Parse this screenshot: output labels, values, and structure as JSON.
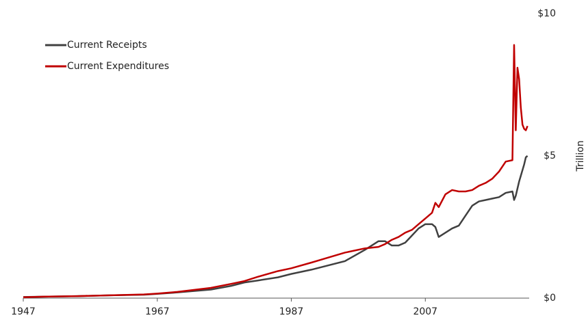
{
  "chart_data": {
    "type": "line",
    "y_label": "Trillion",
    "x": [
      1947,
      1950,
      1955,
      1960,
      1965,
      1967,
      1970,
      1975,
      1978,
      1980,
      1982,
      1985,
      1987,
      1990,
      1995,
      1998,
      2000,
      2001,
      2002,
      2003,
      2004,
      2005,
      2006,
      2007,
      2008,
      2008.5,
      2009,
      2010,
      2011,
      2012,
      2013,
      2014,
      2015,
      2016,
      2017,
      2018,
      2019,
      2020,
      2020.25,
      2020.5,
      2020.75,
      2021,
      2021.25,
      2021.5,
      2021.75,
      2022,
      2022.25
    ],
    "series": [
      {
        "name": "Current Receipts",
        "color": "#404040",
        "values": [
          0.04,
          0.05,
          0.07,
          0.1,
          0.12,
          0.15,
          0.2,
          0.3,
          0.43,
          0.55,
          0.62,
          0.73,
          0.85,
          1.0,
          1.3,
          1.7,
          2.0,
          2.0,
          1.85,
          1.85,
          1.95,
          2.2,
          2.45,
          2.6,
          2.6,
          2.5,
          2.15,
          2.3,
          2.45,
          2.55,
          2.9,
          3.25,
          3.4,
          3.45,
          3.5,
          3.55,
          3.7,
          3.75,
          3.45,
          3.6,
          3.85,
          4.1,
          4.3,
          4.5,
          4.7,
          4.95,
          5.0
        ]
      },
      {
        "name": "Current Expenditures",
        "color": "#c00000",
        "values": [
          0.03,
          0.05,
          0.07,
          0.1,
          0.13,
          0.16,
          0.22,
          0.36,
          0.5,
          0.6,
          0.75,
          0.95,
          1.05,
          1.25,
          1.6,
          1.75,
          1.8,
          1.9,
          2.05,
          2.15,
          2.3,
          2.4,
          2.6,
          2.8,
          3.0,
          3.35,
          3.2,
          3.65,
          3.8,
          3.75,
          3.75,
          3.8,
          3.95,
          4.05,
          4.2,
          4.45,
          4.8,
          4.85,
          8.9,
          5.9,
          8.1,
          7.7,
          6.7,
          6.1,
          5.95,
          5.9,
          6.05
        ]
      }
    ],
    "xlim": [
      1947,
      2022.5
    ],
    "xticks": [
      1947,
      1967,
      1987,
      2007
    ],
    "ylim": [
      0,
      10
    ],
    "yticks": [
      {
        "value": 0,
        "label": "$0"
      },
      {
        "value": 5,
        "label": "$5"
      },
      {
        "value": 10,
        "label": "$10"
      }
    ],
    "legend": "upper left"
  }
}
